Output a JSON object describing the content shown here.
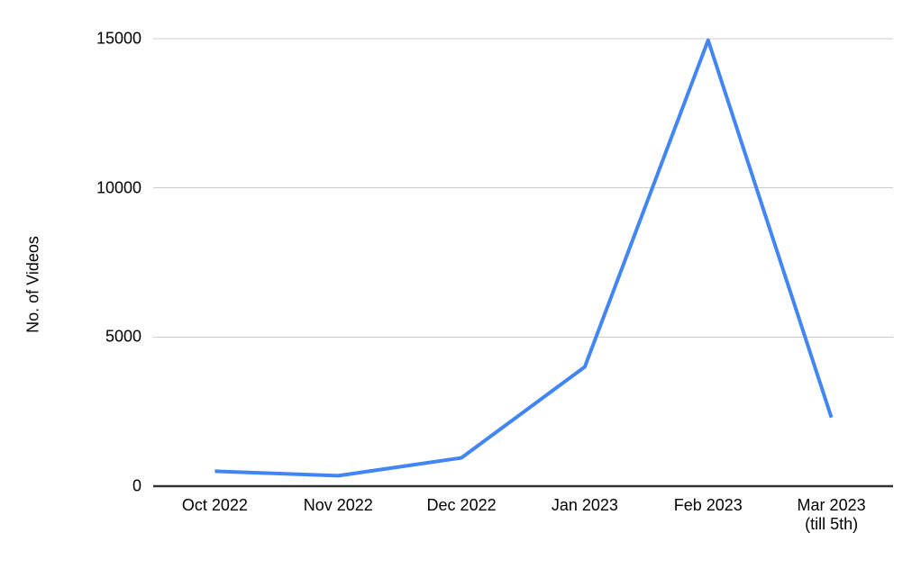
{
  "chart_data": {
    "type": "line",
    "categories": [
      "Oct 2022",
      "Nov 2022",
      "Dec 2022",
      "Jan 2023",
      "Feb 2023",
      "Mar 2023\n(till 5th)"
    ],
    "values": [
      500,
      350,
      950,
      4000,
      14950,
      2300
    ],
    "series": [
      {
        "name": "No. of Videos",
        "values": [
          500,
          350,
          950,
          4000,
          14950,
          2300
        ]
      }
    ],
    "title": "",
    "xlabel": "",
    "ylabel": "No. of Videos",
    "ylim": [
      0,
      15000
    ],
    "yticks": [
      0,
      5000,
      10000,
      15000
    ],
    "ytick_labels": [
      "0",
      "5000",
      "10000",
      "15000"
    ],
    "grid": true,
    "legend_position": "none",
    "line_color": "#4285f4",
    "gridline_color": "#cccccc",
    "baseline_color": "#333333",
    "text_color": "#000000",
    "background_color": "#ffffff"
  }
}
